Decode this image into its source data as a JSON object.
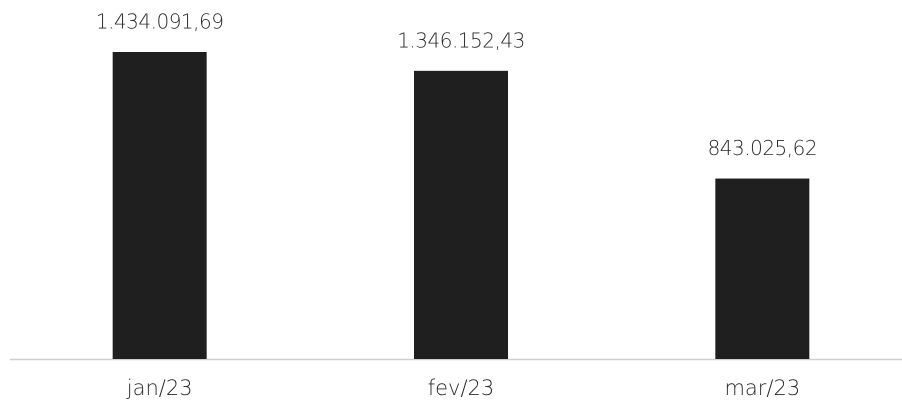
{
  "chart_data": {
    "type": "bar",
    "categories": [
      "jan/23",
      "fev/23",
      "mar/23"
    ],
    "values": [
      1434091.69,
      1346152.43,
      843025.62
    ],
    "value_labels": [
      "1.434.091,69",
      "1.346.152,43",
      "843.025,62"
    ],
    "color": "#1f1f1f"
  }
}
